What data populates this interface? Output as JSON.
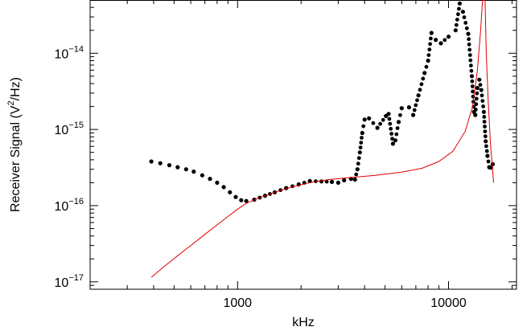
{
  "chart_data": {
    "type": "scatter",
    "title": "",
    "xlabel": "kHz",
    "ylabel_parts": [
      "Receiver Signal (V",
      "2",
      "/Hz)"
    ],
    "x_scale": "log",
    "y_scale": "log",
    "xlim": [
      200,
      21000
    ],
    "ylim": [
      8e-18,
      5e-14
    ],
    "grid": false,
    "legend": "none",
    "x_ticks": [
      {
        "value": 1000,
        "label": "1000"
      },
      {
        "value": 10000,
        "label": "10000"
      }
    ],
    "y_ticks": [
      {
        "value": 1e-14,
        "base": "10",
        "exp": "−14"
      },
      {
        "value": 1e-15,
        "base": "10",
        "exp": "−15"
      },
      {
        "value": 1e-16,
        "base": "10",
        "exp": "−16"
      },
      {
        "value": 1e-17,
        "base": "10",
        "exp": "−17"
      }
    ],
    "series": [
      {
        "style": "points",
        "color": "#000000",
        "points": [
          [
            390,
            3.8e-16
          ],
          [
            430,
            3.6e-16
          ],
          [
            475,
            3.4e-16
          ],
          [
            520,
            3.2e-16
          ],
          [
            570,
            3e-16
          ],
          [
            620,
            2.8e-16
          ],
          [
            680,
            2.5e-16
          ],
          [
            740,
            2.25e-16
          ],
          [
            800,
            2e-16
          ],
          [
            860,
            1.75e-16
          ],
          [
            920,
            1.5e-16
          ],
          [
            980,
            1.3e-16
          ],
          [
            1040,
            1.18e-16
          ],
          [
            1100,
            1.15e-16
          ],
          [
            1200,
            1.2e-16
          ],
          [
            1350,
            1.35e-16
          ],
          [
            1500,
            1.5e-16
          ],
          [
            1700,
            1.7e-16
          ],
          [
            1950,
            1.9e-16
          ],
          [
            2200,
            2.1e-16
          ],
          [
            2500,
            2.08e-16
          ],
          [
            2800,
            2.05e-16
          ],
          [
            3000,
            2e-16
          ],
          [
            3200,
            2.15e-16
          ],
          [
            3450,
            2.25e-16
          ],
          [
            3600,
            2.2e-16
          ],
          [
            3700,
            3e-16
          ],
          [
            3800,
            5e-16
          ],
          [
            3900,
            9e-16
          ],
          [
            4000,
            1.35e-15
          ],
          [
            4200,
            1.4e-15
          ],
          [
            4600,
            1.05e-15
          ],
          [
            5050,
            1.5e-15
          ],
          [
            5200,
            1.6e-15
          ],
          [
            5450,
            6.5e-16
          ],
          [
            5600,
            7.2e-16
          ],
          [
            5800,
            1.25e-15
          ],
          [
            6000,
            1.9e-15
          ],
          [
            6500,
            1.95e-15
          ],
          [
            6800,
            1.55e-15
          ],
          [
            7200,
            2.8e-15
          ],
          [
            7700,
            5.5e-15
          ],
          [
            8000,
            8e-15
          ],
          [
            8300,
            1.85e-14
          ],
          [
            8700,
            1.5e-14
          ],
          [
            9200,
            1.35e-14
          ],
          [
            10000,
            1.65e-14
          ],
          [
            10800,
            2e-14
          ],
          [
            11300,
            4.5e-14
          ],
          [
            11700,
            3.5e-14
          ],
          [
            12400,
            1.8e-14
          ],
          [
            12900,
            5e-15
          ],
          [
            13200,
            1.7e-15
          ],
          [
            13400,
            1.55e-15
          ],
          [
            13700,
            3.5e-15
          ],
          [
            14000,
            4.5e-15
          ],
          [
            14300,
            3.3e-15
          ],
          [
            14700,
            1.7e-15
          ],
          [
            15000,
            7e-16
          ],
          [
            15300,
            4.5e-16
          ],
          [
            15600,
            3.2e-16
          ],
          [
            15900,
            3.15e-16
          ],
          [
            16200,
            3.5e-16
          ]
        ]
      },
      {
        "style": "line",
        "color": "#e00000",
        "points": [
          [
            390,
            1.15e-17
          ],
          [
            450,
            1.6e-17
          ],
          [
            520,
            2.2e-17
          ],
          [
            600,
            3e-17
          ],
          [
            700,
            4.2e-17
          ],
          [
            800,
            5.6e-17
          ],
          [
            900,
            7.2e-17
          ],
          [
            1000,
            9e-17
          ],
          [
            1100,
            1.07e-16
          ],
          [
            1250,
            1.25e-16
          ],
          [
            1500,
            1.5e-16
          ],
          [
            1800,
            1.75e-16
          ],
          [
            2200,
            2e-16
          ],
          [
            2700,
            2.2e-16
          ],
          [
            3500,
            2.35e-16
          ],
          [
            4500,
            2.5e-16
          ],
          [
            6000,
            2.75e-16
          ],
          [
            7500,
            3.1e-16
          ],
          [
            9000,
            3.8e-16
          ],
          [
            10500,
            5.2e-16
          ],
          [
            12000,
            9.5e-16
          ],
          [
            13000,
            2e-15
          ],
          [
            13700,
            6e-15
          ],
          [
            14200,
            2e-14
          ],
          [
            14500,
            5e-14
          ],
          [
            14900,
            5e-14
          ],
          [
            15100,
            1e-14
          ],
          [
            15400,
            2.5e-15
          ],
          [
            15800,
            6.5e-16
          ],
          [
            16100,
            3.5e-16
          ],
          [
            16350,
            2e-16
          ]
        ]
      }
    ]
  }
}
